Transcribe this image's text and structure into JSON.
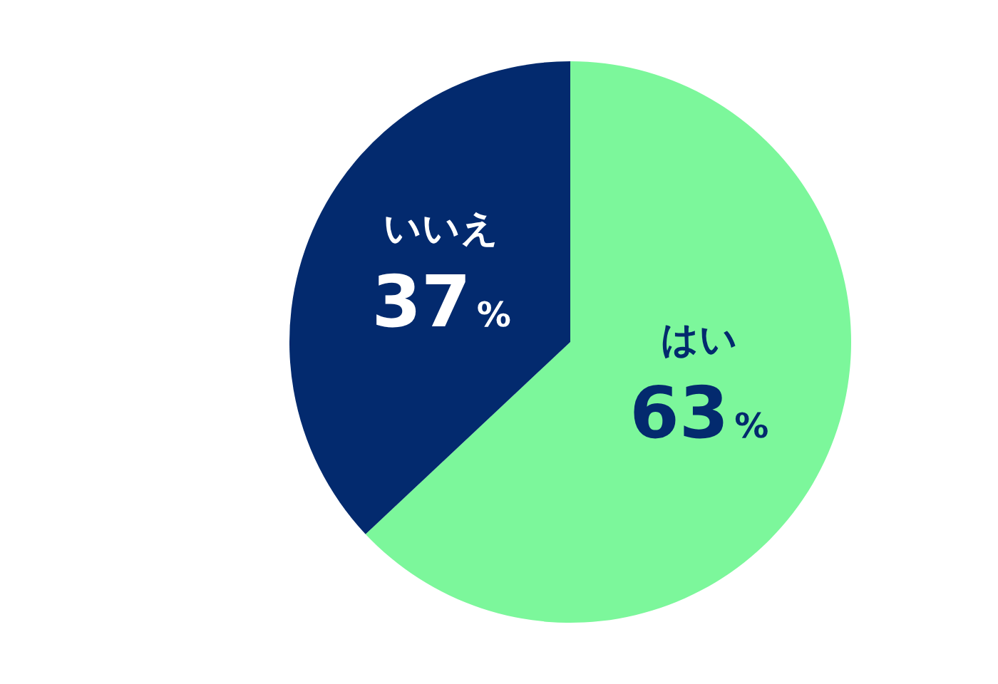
{
  "chart_data": {
    "type": "pie",
    "categories": [
      "はい",
      "いいえ"
    ],
    "values": [
      63,
      37
    ],
    "colors": [
      "#7cf79b",
      "#032a6e"
    ],
    "value_labels": [
      "63%",
      "37%"
    ]
  }
}
